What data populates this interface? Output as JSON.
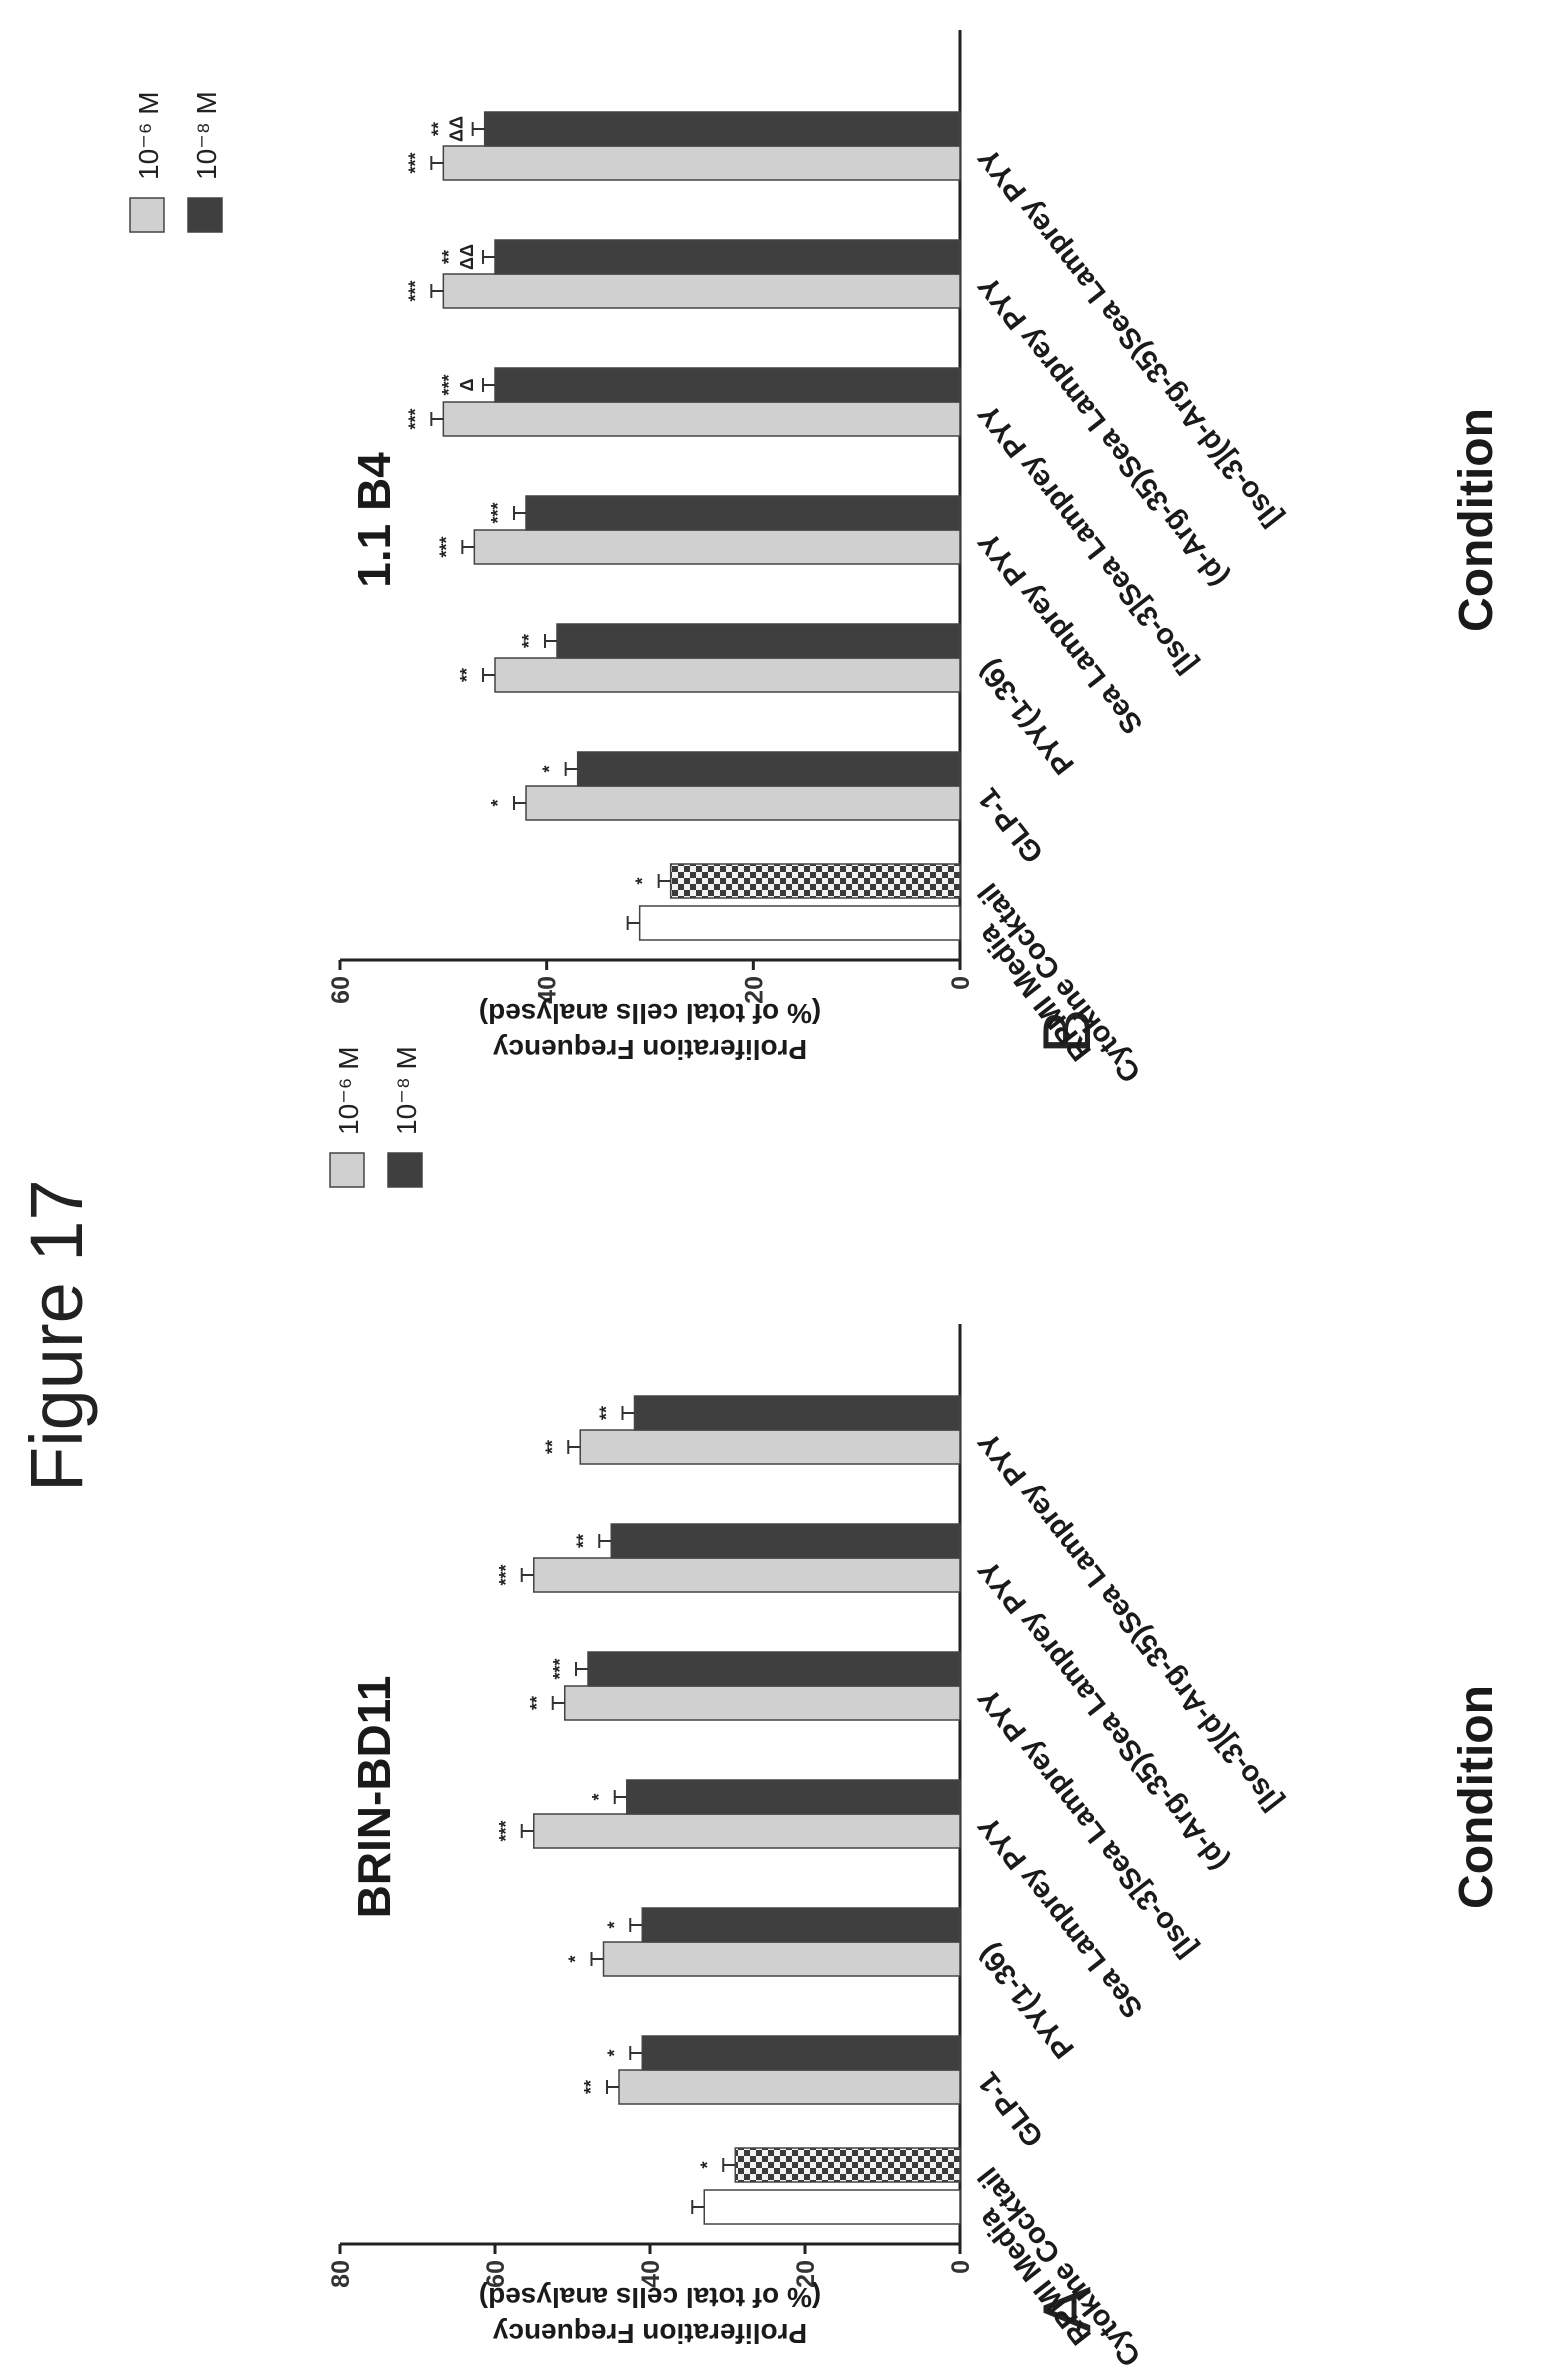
{
  "figure_title": "Figure 17",
  "colors": {
    "light_bar": "#d0d0d0",
    "dark_bar": "#3f3f3f",
    "white_bar": "#ffffff",
    "axis": "#222222"
  },
  "chart_data": [
    {
      "type": "bar",
      "panel": "A",
      "title": "BRIN-BD11",
      "xlabel": "Condition",
      "ylabel": "Proliferation Frequency",
      "ylabel_sub": "(% of total cells analysed)",
      "ylim": [
        0,
        80
      ],
      "yticks": [
        "0",
        "20",
        "40",
        "60",
        "80"
      ],
      "grid": false,
      "legend_position": "top-right",
      "controls": [
        {
          "label": "RPMI Media",
          "value": 33,
          "fill": "white",
          "sig": ""
        },
        {
          "label": "Cytokine Cocktail",
          "value": 29,
          "fill": "checkered",
          "sig": "*"
        }
      ],
      "categories": [
        "GLP-1",
        "PYY(1-36)",
        "Sea Lamprey PYY",
        "[Iso-3]Sea Lamprey PYY",
        "(d-Arg-35)Sea Lamprey PYY",
        "[Iso-3](d-Arg-35)Sea Lamprey PYY"
      ],
      "series": [
        {
          "name": "10⁻⁶ M",
          "values": [
            44,
            46,
            55,
            51,
            55,
            49
          ],
          "sig": [
            "**",
            "*",
            "***",
            "**",
            "***",
            "**"
          ]
        },
        {
          "name": "10⁻⁸ M",
          "values": [
            41,
            41,
            43,
            48,
            45,
            42
          ],
          "sig": [
            "*",
            "*",
            "*",
            "***",
            "**",
            "**"
          ]
        }
      ]
    },
    {
      "type": "bar",
      "panel": "B",
      "title": "1.1 B4",
      "xlabel": "Condition",
      "ylabel": "Proliferation Frequency",
      "ylabel_sub": "(% of total cells analysed)",
      "ylim": [
        0,
        60
      ],
      "yticks": [
        "0",
        "20",
        "40",
        "60"
      ],
      "grid": false,
      "legend_position": "top-right",
      "controls": [
        {
          "label": "RPMI Media",
          "value": 31,
          "fill": "white",
          "sig": ""
        },
        {
          "label": "Cytokine Cocktail",
          "value": 28,
          "fill": "checkered",
          "sig": "*"
        }
      ],
      "categories": [
        "GLP-1",
        "PYY(1-36)",
        "Sea Lamprey PYY",
        "[Iso-3]Sea Lamprey PYY",
        "(d-Arg-35)Sea Lamprey PYY",
        "[Iso-3](d-Arg-35)Sea Lamprey PYY"
      ],
      "series": [
        {
          "name": "10⁻⁶ M",
          "values": [
            42,
            45,
            47,
            50,
            50,
            50
          ],
          "sig": [
            "*",
            "**",
            "***",
            "***",
            "***",
            "***"
          ]
        },
        {
          "name": "10⁻⁸ M",
          "values": [
            37,
            39,
            42,
            45,
            45,
            46
          ],
          "sig": [
            "*",
            "**",
            "***",
            "***\nΔ",
            "**\nΔΔ",
            "**\nΔΔ"
          ]
        }
      ]
    }
  ]
}
